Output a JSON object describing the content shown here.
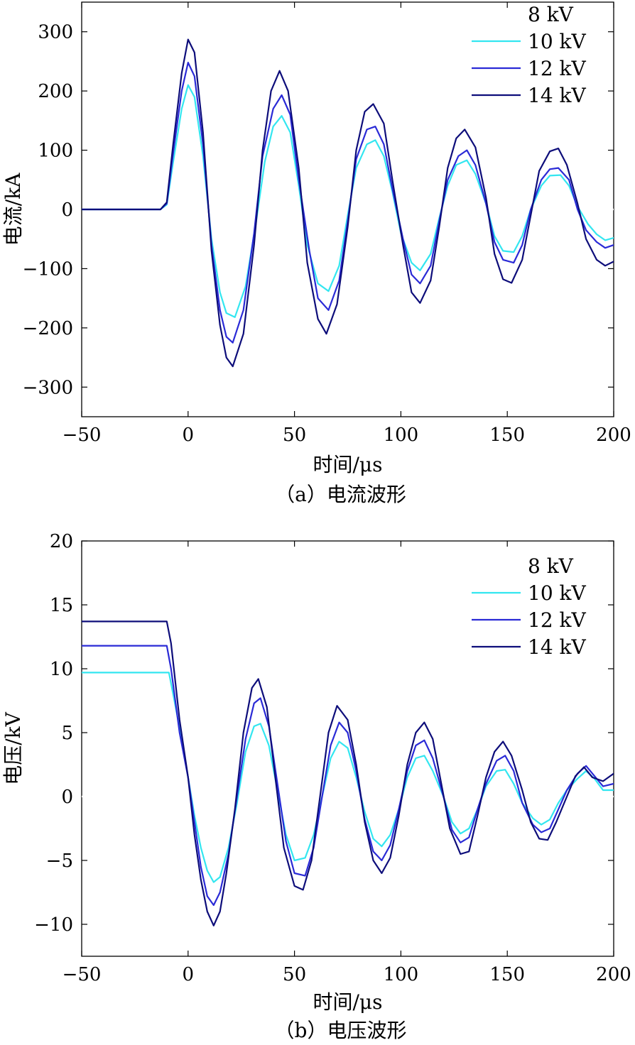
{
  "chart_data": [
    {
      "type": "line",
      "xlabel": "时间/μs",
      "ylabel": "电流/kA",
      "caption": "（a）电流波形",
      "xlim": [
        -50,
        200
      ],
      "ylim": [
        -350,
        350
      ],
      "xticks": [
        -50,
        0,
        50,
        100,
        150,
        200
      ],
      "yticks": [
        300,
        200,
        100,
        0,
        -100,
        -200,
        -300
      ],
      "grid": false,
      "legend_position": "top-right",
      "legend_entries": [
        "8 kV",
        "10 kV",
        "12 kV",
        "14 kV"
      ],
      "series": [
        {
          "name": "8 kV",
          "color": "#ffffff",
          "x": [
            -50,
            200
          ],
          "y": [
            0,
            0
          ]
        },
        {
          "name": "10 kV",
          "color": "#33e6f0",
          "x": [
            -50,
            -13,
            -10,
            -7,
            -3,
            0,
            3,
            7,
            11,
            15,
            18,
            22,
            27,
            32,
            36,
            40,
            44,
            48,
            52,
            56,
            61,
            66,
            71,
            75,
            79,
            84,
            88,
            92,
            96,
            100,
            105,
            109,
            114,
            118,
            122,
            126,
            131,
            135,
            140,
            144,
            148,
            153,
            157,
            161,
            166,
            170,
            175,
            179,
            183,
            188,
            192,
            196,
            200
          ],
          "y": [
            0,
            0,
            8,
            80,
            170,
            210,
            190,
            90,
            -50,
            -140,
            -175,
            -182,
            -130,
            -20,
            80,
            140,
            158,
            130,
            40,
            -60,
            -125,
            -138,
            -95,
            -10,
            70,
            110,
            117,
            90,
            30,
            -40,
            -90,
            -103,
            -75,
            -15,
            40,
            75,
            83,
            60,
            10,
            -45,
            -70,
            -72,
            -45,
            0,
            40,
            57,
            58,
            40,
            5,
            -25,
            -42,
            -52,
            -48
          ]
        },
        {
          "name": "12 kV",
          "color": "#2a2ad6",
          "x": [
            -50,
            -13,
            -10,
            -7,
            -3,
            0,
            3,
            7,
            11,
            15,
            18,
            21,
            26,
            31,
            35,
            40,
            44,
            48,
            52,
            57,
            61,
            66,
            71,
            75,
            79,
            84,
            88,
            92,
            96,
            101,
            105,
            109,
            114,
            118,
            122,
            127,
            131,
            135,
            140,
            144,
            148,
            153,
            157,
            161,
            166,
            170,
            174,
            179,
            183,
            187,
            192,
            196,
            200
          ],
          "y": [
            0,
            0,
            10,
            95,
            200,
            248,
            225,
            110,
            -60,
            -170,
            -215,
            -225,
            -170,
            -40,
            90,
            170,
            193,
            160,
            50,
            -70,
            -150,
            -170,
            -120,
            -20,
            85,
            135,
            140,
            110,
            35,
            -50,
            -110,
            -125,
            -95,
            -20,
            50,
            90,
            100,
            75,
            10,
            -55,
            -85,
            -90,
            -60,
            0,
            50,
            68,
            70,
            50,
            0,
            -35,
            -55,
            -65,
            -60
          ]
        },
        {
          "name": "14 kV",
          "color": "#0d0d7a",
          "x": [
            -50,
            -13,
            -10,
            -7,
            -3,
            0,
            3,
            7,
            11,
            15,
            18,
            21,
            26,
            31,
            35,
            39,
            43,
            47,
            52,
            56,
            61,
            65,
            70,
            75,
            79,
            83,
            87,
            92,
            96,
            101,
            105,
            109,
            114,
            118,
            122,
            126,
            130,
            135,
            140,
            144,
            148,
            152,
            157,
            161,
            165,
            170,
            174,
            178,
            183,
            187,
            192,
            196,
            200
          ],
          "y": [
            0,
            0,
            12,
            110,
            230,
            287,
            265,
            130,
            -70,
            -195,
            -250,
            -265,
            -210,
            -60,
            100,
            200,
            234,
            200,
            70,
            -90,
            -185,
            -210,
            -160,
            -30,
            100,
            165,
            178,
            145,
            50,
            -60,
            -140,
            -158,
            -120,
            -30,
            70,
            120,
            135,
            105,
            20,
            -75,
            -118,
            -124,
            -85,
            -10,
            65,
            98,
            103,
            75,
            10,
            -50,
            -85,
            -95,
            -88
          ]
        }
      ]
    },
    {
      "type": "line",
      "xlabel": "时间/μs",
      "ylabel": "电压/kV",
      "caption": "（b）电压波形",
      "xlim": [
        -50,
        200
      ],
      "ylim": [
        -12.5,
        20
      ],
      "xticks": [
        -50,
        0,
        50,
        100,
        150,
        200
      ],
      "yticks": [
        20,
        15,
        10,
        5,
        0,
        -5,
        -10
      ],
      "grid": false,
      "legend_position": "top-right",
      "legend_entries": [
        "8 kV",
        "10 kV",
        "12 kV",
        "14 kV"
      ],
      "series": [
        {
          "name": "8 kV",
          "color": "#ffffff",
          "x": [
            -50,
            200
          ],
          "y": [
            0,
            0
          ]
        },
        {
          "name": "10 kV",
          "color": "#33e6f0",
          "x": [
            -50,
            -9,
            -7,
            -3,
            0,
            3,
            6,
            9,
            12,
            15,
            19,
            23,
            27,
            31,
            34,
            38,
            42,
            46,
            50,
            55,
            59,
            63,
            67,
            71,
            75,
            79,
            83,
            87,
            91,
            95,
            99,
            103,
            107,
            111,
            115,
            120,
            124,
            128,
            132,
            136,
            140,
            145,
            149,
            153,
            157,
            162,
            166,
            170,
            174,
            178,
            183,
            187,
            191,
            195,
            200
          ],
          "y": [
            9.7,
            9.7,
            8,
            4.5,
            1.5,
            -1.5,
            -4,
            -5.8,
            -6.7,
            -6.3,
            -4,
            -0.5,
            3.5,
            5.5,
            5.7,
            4,
            0.5,
            -3,
            -5,
            -4.8,
            -3,
            0,
            3,
            4.3,
            3.8,
            1.5,
            -1.2,
            -3.3,
            -3.9,
            -3,
            -1,
            1.5,
            3,
            3.2,
            2,
            0,
            -2,
            -2.9,
            -2.5,
            -1,
            0.8,
            2,
            2.1,
            1,
            -0.5,
            -1.7,
            -2.2,
            -1.8,
            -0.5,
            0.5,
            1.4,
            2,
            1.4,
            0.5,
            0.5
          ]
        },
        {
          "name": "12 kV",
          "color": "#2a2ad6",
          "x": [
            -50,
            -10,
            -8,
            -4,
            0,
            3,
            6,
            9,
            12,
            15,
            19,
            23,
            27,
            31,
            34,
            38,
            42,
            46,
            50,
            55,
            59,
            63,
            67,
            71,
            75,
            79,
            83,
            87,
            91,
            95,
            99,
            103,
            107,
            111,
            115,
            120,
            124,
            128,
            132,
            136,
            140,
            145,
            149,
            153,
            157,
            162,
            166,
            170,
            174,
            178,
            183,
            187,
            191,
            195,
            200
          ],
          "y": [
            11.8,
            11.8,
            10,
            5,
            1.5,
            -2,
            -5.5,
            -7.8,
            -8.5,
            -7.5,
            -4.5,
            0,
            4.5,
            7.3,
            7.7,
            5.5,
            1,
            -3.5,
            -6,
            -6.2,
            -4,
            0,
            4,
            5.8,
            5,
            2,
            -1.8,
            -4.3,
            -5,
            -3.8,
            -1,
            2,
            4,
            4.4,
            3,
            0,
            -2.6,
            -3.6,
            -3.2,
            -1,
            1,
            2.8,
            3.2,
            2,
            -0.5,
            -2.2,
            -2.8,
            -2.5,
            -1,
            0.5,
            1.8,
            2.4,
            1.6,
            0.8,
            1
          ]
        },
        {
          "name": "14 kV",
          "color": "#0d0d7a",
          "x": [
            -50,
            -10,
            -8,
            -4,
            0,
            3,
            6,
            9,
            12,
            15,
            18,
            22,
            26,
            30,
            33,
            37,
            41,
            45,
            50,
            54,
            58,
            62,
            66,
            70,
            75,
            79,
            83,
            87,
            91,
            95,
            99,
            103,
            107,
            111,
            115,
            119,
            123,
            128,
            132,
            136,
            140,
            144,
            148,
            152,
            157,
            161,
            165,
            169,
            173,
            178,
            182,
            186,
            190,
            195,
            200
          ],
          "y": [
            13.7,
            13.7,
            12,
            6,
            1.5,
            -3,
            -6.5,
            -9,
            -10.1,
            -9,
            -6,
            -1,
            5,
            8.5,
            9.2,
            7,
            1.5,
            -4,
            -7,
            -7.3,
            -5,
            0,
            5,
            7.1,
            6,
            2.5,
            -2,
            -5,
            -6,
            -4.8,
            -1.5,
            2.5,
            5,
            5.8,
            4.5,
            1,
            -2.5,
            -4.5,
            -4.3,
            -1.5,
            1.5,
            3.5,
            4.3,
            3.2,
            0.5,
            -2,
            -3.3,
            -3.4,
            -2,
            0,
            1.6,
            2.3,
            1.5,
            1.2,
            1.8
          ]
        }
      ]
    }
  ]
}
